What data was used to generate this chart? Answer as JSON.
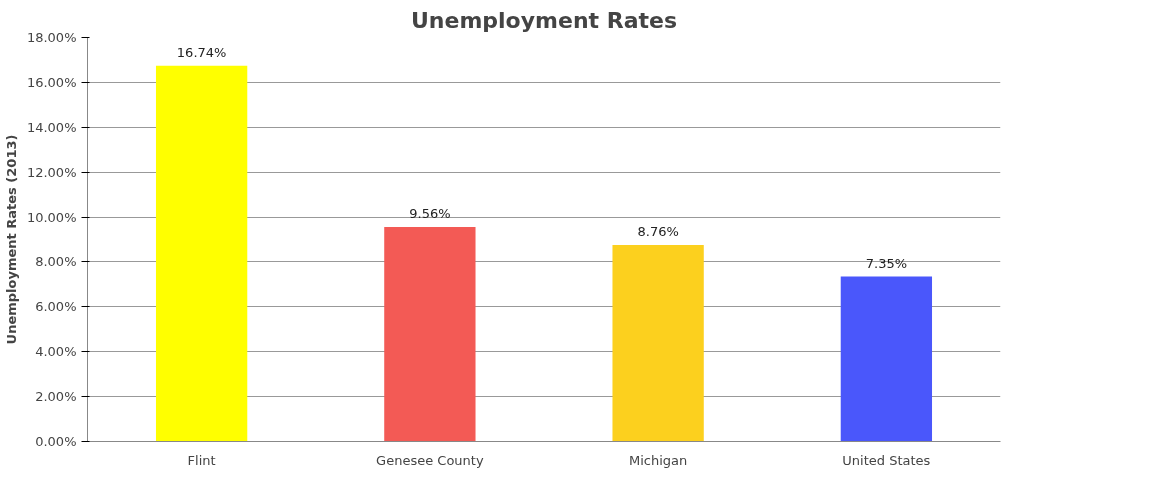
{
  "chart_data": {
    "type": "bar",
    "title": "Unemployment Rates",
    "ylabel": "Unemployment Rates (2013)",
    "categories": [
      "Flint",
      "Genesee County",
      "Michigan",
      "United States"
    ],
    "values": [
      16.74,
      9.56,
      8.76,
      7.35
    ],
    "colors": [
      "#ffff00",
      "#f35a55",
      "#fcd01e",
      "#4a57fb"
    ],
    "value_labels": [
      "16.74%",
      "9.56%",
      "8.76%",
      "7.35%"
    ],
    "ylim": [
      0,
      18
    ],
    "yticks": [
      {
        "value": 0,
        "label": "0.00%"
      },
      {
        "value": 2,
        "label": "2.00%"
      },
      {
        "value": 4,
        "label": "4.00%"
      },
      {
        "value": 6,
        "label": "6.00%"
      },
      {
        "value": 8,
        "label": "8.00%"
      },
      {
        "value": 10,
        "label": "10.00%"
      },
      {
        "value": 12,
        "label": "12.00%"
      },
      {
        "value": 14,
        "label": "14.00%"
      },
      {
        "value": 16,
        "label": "16.00%"
      },
      {
        "value": 18,
        "label": "18.00%"
      }
    ],
    "grid": "y"
  }
}
